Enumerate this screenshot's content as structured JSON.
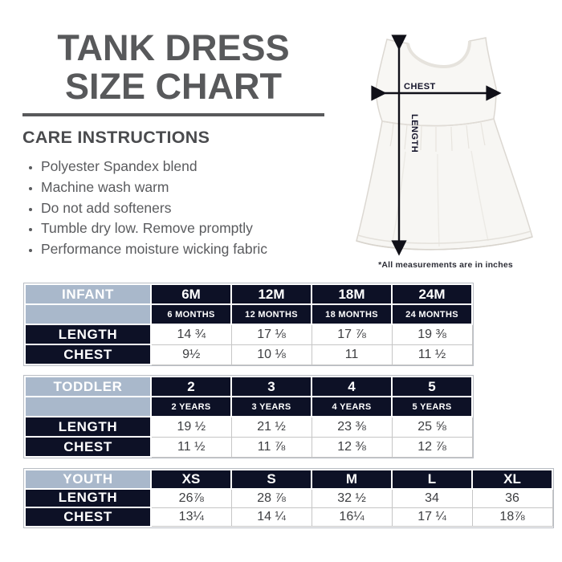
{
  "header": {
    "title_line1": "TANK DRESS",
    "title_line2": "SIZE CHART"
  },
  "care": {
    "heading": "CARE INSTRUCTIONS",
    "items": [
      "Polyester Spandex blend",
      "Machine wash warm",
      "Do not add softeners",
      "Tumble dry low. Remove promptly",
      "Performance moisture wicking fabric"
    ]
  },
  "figure": {
    "chest_label": "CHEST",
    "length_label": "LENGTH",
    "caption": "*All measurements are in inches"
  },
  "colors": {
    "title_gray": "#58595b",
    "body_gray": "#5a5b5e",
    "navy": "#0d1126",
    "steel_blue": "#a9b8cb",
    "data_text": "#3d3e41",
    "grid_line": "#c6c6c6",
    "arrow_black": "#101018"
  },
  "tables": [
    {
      "group_label": "INFANT",
      "sizes": [
        "6M",
        "12M",
        "18M",
        "24M"
      ],
      "size_sublabels": [
        "6 MONTHS",
        "12 MONTHS",
        "18 MONTHS",
        "24 MONTHS"
      ],
      "rows": [
        {
          "label": "LENGTH",
          "values": [
            "14 ¾",
            "17 ⅛",
            "17 ⅞",
            "19 ⅜"
          ]
        },
        {
          "label": "CHEST",
          "values": [
            "9½",
            "10 ⅛",
            "11",
            "11 ½"
          ]
        }
      ]
    },
    {
      "group_label": "TODDLER",
      "sizes": [
        "2",
        "3",
        "4",
        "5"
      ],
      "size_sublabels": [
        "2 YEARS",
        "3 YEARS",
        "4 YEARS",
        "5 YEARS"
      ],
      "rows": [
        {
          "label": "LENGTH",
          "values": [
            "19 ½",
            "21 ½",
            "23 ⅜",
            "25 ⅝"
          ]
        },
        {
          "label": "CHEST",
          "values": [
            "11 ½",
            "11 ⅞",
            "12 ⅜",
            "12 ⅞"
          ]
        }
      ]
    },
    {
      "group_label": "YOUTH",
      "sizes": [
        "XS",
        "S",
        "M",
        "L",
        "XL"
      ],
      "size_sublabels": null,
      "rows": [
        {
          "label": "LENGTH",
          "values": [
            "26⅞",
            "28 ⅞",
            "32 ½",
            "34",
            "36"
          ]
        },
        {
          "label": "CHEST",
          "values": [
            "13¼",
            "14 ¼",
            "16¼",
            "17 ¼",
            "18⅞"
          ]
        }
      ]
    }
  ]
}
